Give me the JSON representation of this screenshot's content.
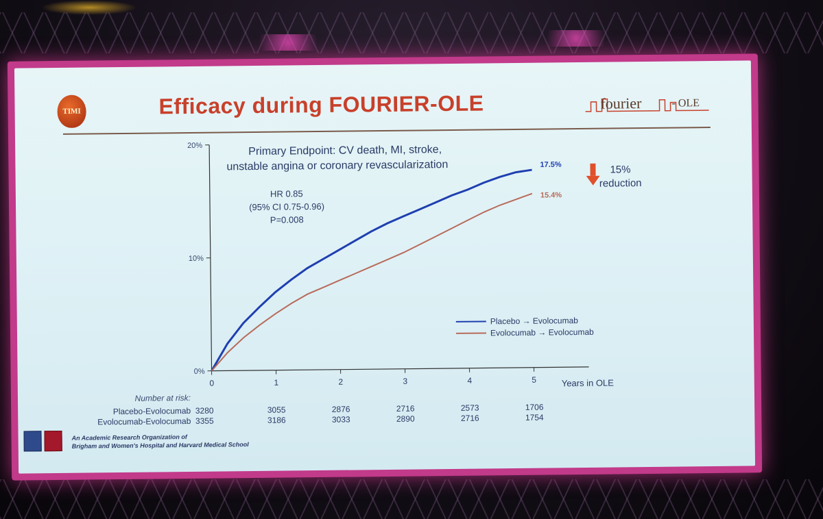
{
  "slide": {
    "title": "Efficacy during FOURIER-OLE",
    "logo_text": "TIMI",
    "fourier_logo": "fourier",
    "fourier_logo_suffix": "- OLE",
    "endpoint_line1": "Primary Endpoint: CV death, MI, stroke,",
    "endpoint_line2": "unstable angina or coronary revascularization",
    "hr_line1": "HR 0.85",
    "hr_line2": "(95% CI 0.75-0.96)",
    "hr_line3": "P=0.008",
    "reduction_line1": "15%",
    "reduction_line2": "reduction",
    "footer_line1": "An Academic Research Organization of",
    "footer_line2": "Brigham and Women's Hospital and Harvard Medical School",
    "number_at_risk_label": "Number at risk:"
  },
  "colors": {
    "placebo": "#1f3fb0",
    "evolocumab": "#b86a5a",
    "arrow": "#e0502a",
    "title": "#c8402a",
    "text": "#2a3a66"
  },
  "chart_data": {
    "type": "line",
    "xlabel": "Years in OLE",
    "ylabel": "",
    "xlim": [
      0,
      5
    ],
    "ylim": [
      0,
      20
    ],
    "x_ticks": [
      "0",
      "1",
      "2",
      "3",
      "4",
      "5"
    ],
    "y_ticks": [
      "0%",
      "10%",
      "20%"
    ],
    "series": [
      {
        "name": "Placebo → Evolocumab",
        "color": "#1f3fb0",
        "end_label": "17.5%",
        "points": [
          [
            0,
            0
          ],
          [
            0.25,
            2.4
          ],
          [
            0.5,
            4.2
          ],
          [
            0.75,
            5.6
          ],
          [
            1,
            6.9
          ],
          [
            1.25,
            8.0
          ],
          [
            1.5,
            9.0
          ],
          [
            1.75,
            9.8
          ],
          [
            2,
            10.6
          ],
          [
            2.25,
            11.4
          ],
          [
            2.5,
            12.2
          ],
          [
            2.75,
            12.9
          ],
          [
            3,
            13.5
          ],
          [
            3.25,
            14.1
          ],
          [
            3.5,
            14.7
          ],
          [
            3.75,
            15.3
          ],
          [
            4,
            15.8
          ],
          [
            4.25,
            16.4
          ],
          [
            4.5,
            16.9
          ],
          [
            4.75,
            17.3
          ],
          [
            5,
            17.5
          ]
        ]
      },
      {
        "name": "Evolocumab → Evolocumab",
        "color": "#b86a5a",
        "end_label": "15.4%",
        "points": [
          [
            0,
            0
          ],
          [
            0.25,
            1.6
          ],
          [
            0.5,
            2.9
          ],
          [
            0.75,
            4.0
          ],
          [
            1,
            5.0
          ],
          [
            1.25,
            5.9
          ],
          [
            1.5,
            6.7
          ],
          [
            1.75,
            7.3
          ],
          [
            2,
            7.9
          ],
          [
            2.25,
            8.5
          ],
          [
            2.5,
            9.1
          ],
          [
            2.75,
            9.7
          ],
          [
            3,
            10.3
          ],
          [
            3.25,
            11.0
          ],
          [
            3.5,
            11.7
          ],
          [
            3.75,
            12.4
          ],
          [
            4,
            13.1
          ],
          [
            4.25,
            13.8
          ],
          [
            4.5,
            14.4
          ],
          [
            4.75,
            14.9
          ],
          [
            5,
            15.4
          ]
        ]
      }
    ],
    "number_at_risk": [
      {
        "name": "Placebo-Evolocumab",
        "values": [
          "3280",
          "3055",
          "2876",
          "2716",
          "2573",
          "1706"
        ]
      },
      {
        "name": "Evolocumab-Evolocumab",
        "values": [
          "3355",
          "3186",
          "3033",
          "2890",
          "2716",
          "1754"
        ]
      }
    ],
    "legend_position": "bottom-right"
  }
}
